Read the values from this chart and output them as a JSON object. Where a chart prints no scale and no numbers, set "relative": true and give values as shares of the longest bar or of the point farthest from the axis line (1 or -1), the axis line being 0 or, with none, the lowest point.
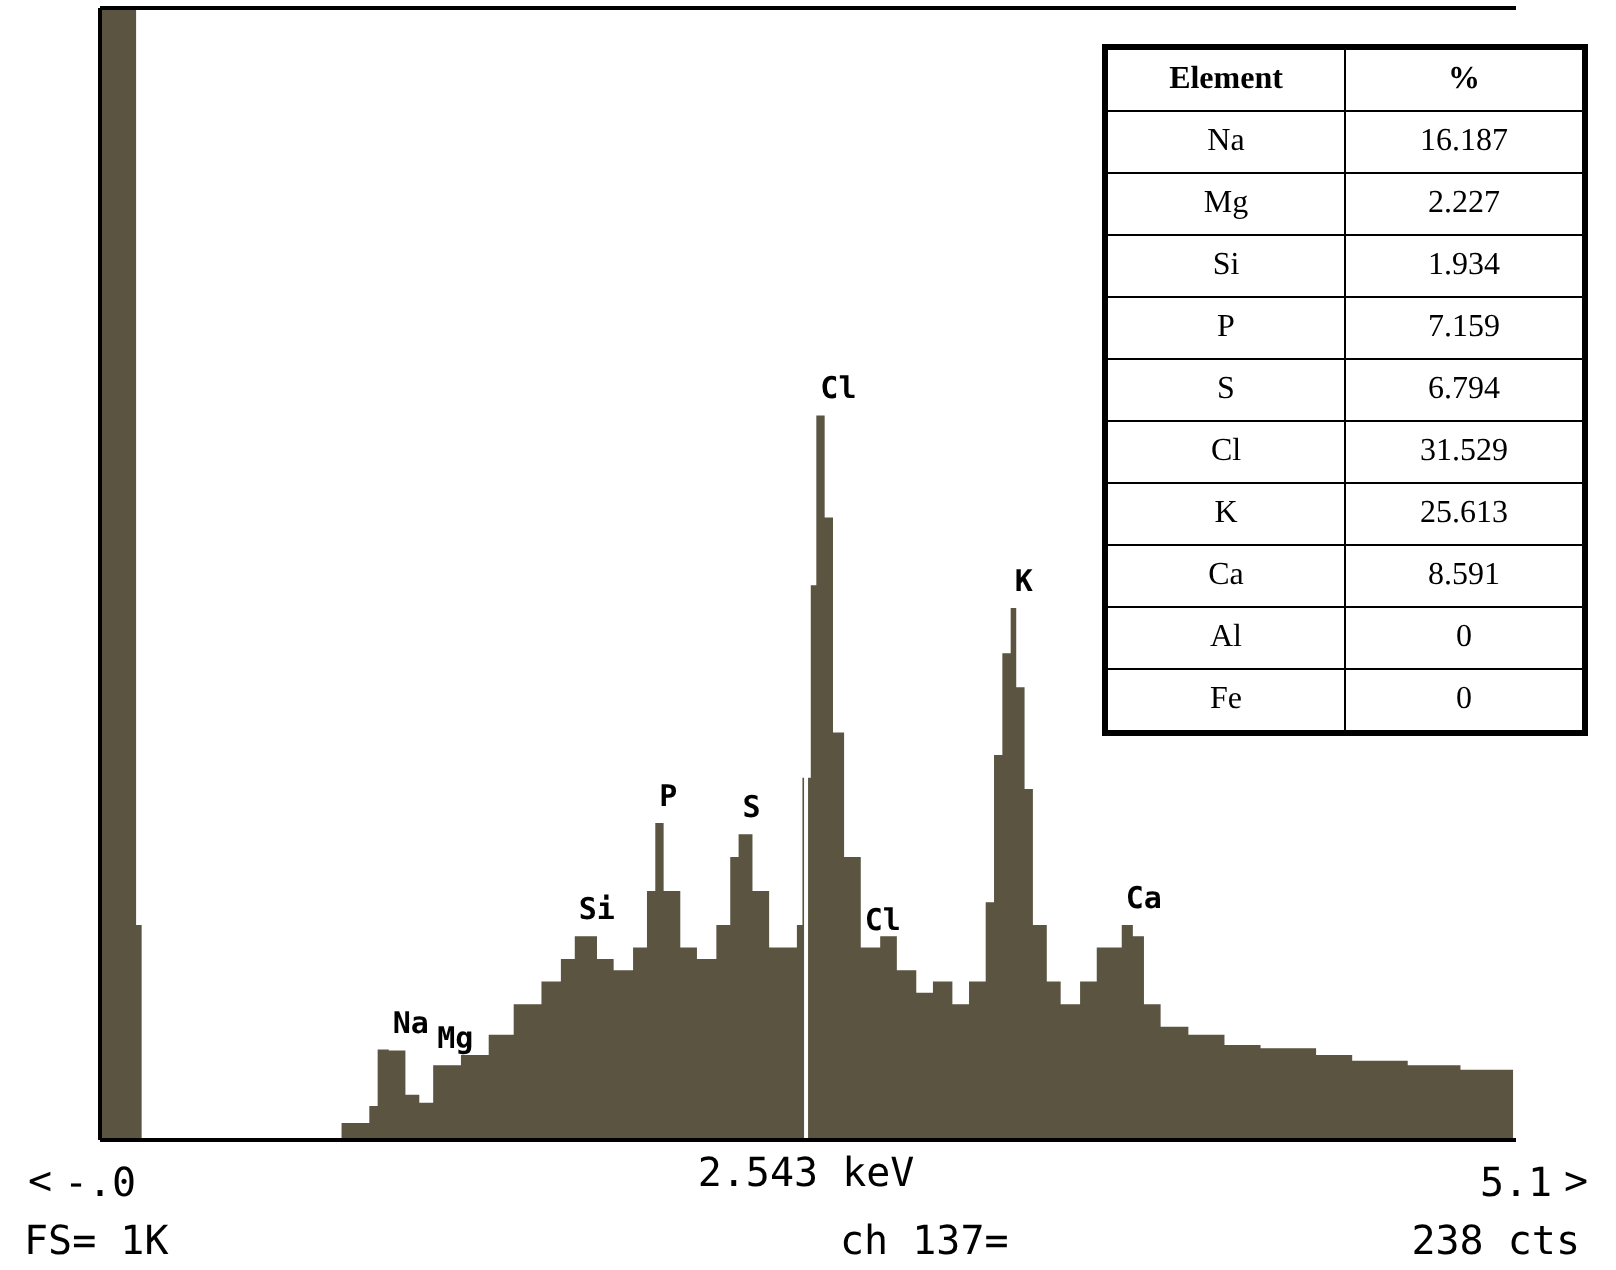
{
  "chart_data": {
    "type": "area",
    "relative": true,
    "color": "#5a5440",
    "x": [
      0,
      0.13,
      0.13,
      0.15,
      0.84,
      0.87,
      0.97,
      1.0,
      1.04,
      1.1,
      1.15,
      1.2,
      1.3,
      1.4,
      1.49,
      1.59,
      1.66,
      1.71,
      1.79,
      1.85,
      1.92,
      1.97,
      2.0,
      2.03,
      2.09,
      2.15,
      2.22,
      2.27,
      2.3,
      2.35,
      2.41,
      2.48,
      2.51,
      2.53,
      2.56,
      2.58,
      2.61,
      2.64,
      2.68,
      2.74,
      2.81,
      2.87,
      2.94,
      3.0,
      3.07,
      3.13,
      3.19,
      3.22,
      3.25,
      3.28,
      3.3,
      3.33,
      3.36,
      3.41,
      3.46,
      3.53,
      3.59,
      3.68,
      3.72,
      3.76,
      3.82,
      3.92,
      4.05,
      4.18,
      4.38,
      4.51,
      4.71,
      4.9,
      5.09
    ],
    "values": [
      1,
      1,
      0.19,
      0,
      0,
      0.015,
      0.03,
      0.08,
      0.079,
      0.04,
      0.033,
      0.066,
      0.075,
      0.093,
      0.12,
      0.14,
      0.16,
      0.18,
      0.16,
      0.15,
      0.17,
      0.22,
      0.28,
      0.22,
      0.17,
      0.16,
      0.19,
      0.25,
      0.27,
      0.22,
      0.17,
      0.17,
      0.19,
      0.32,
      0.49,
      0.64,
      0.55,
      0.36,
      0.25,
      0.17,
      0.18,
      0.15,
      0.13,
      0.14,
      0.12,
      0.14,
      0.21,
      0.34,
      0.43,
      0.47,
      0.4,
      0.31,
      0.19,
      0.14,
      0.12,
      0.14,
      0.17,
      0.19,
      0.18,
      0.12,
      0.1,
      0.093,
      0.084,
      0.081,
      0.075,
      0.07,
      0.066,
      0.062,
      0.057
    ],
    "xlim": [
      0,
      5.1
    ],
    "xticks": [
      {
        "value": 0,
        "label": "-.0"
      },
      5.1
    ],
    "ref_lines": [
      {
        "axis": "x",
        "value": 2.543,
        "label": "2.543 keV",
        "color": "#ffffff"
      }
    ],
    "annotations": [
      {
        "text": "Na",
        "x": 1.04,
        "y": 0.079
      },
      {
        "text": "Mg",
        "x": 1.2,
        "y": 0.066
      },
      {
        "text": "Si",
        "x": 1.71,
        "y": 0.18
      },
      {
        "text": "P",
        "x": 2.0,
        "y": 0.28
      },
      {
        "text": "S",
        "x": 2.3,
        "y": 0.27
      },
      {
        "text": "Cl",
        "x": 2.58,
        "y": 0.64
      },
      {
        "text": "Cl",
        "x": 2.74,
        "y": 0.17
      },
      {
        "text": "K",
        "x": 3.28,
        "y": 0.47
      },
      {
        "text": "Ca",
        "x": 3.68,
        "y": 0.19
      },
      "FS= 1K",
      "ch 137=",
      "238 cts",
      "<",
      ">",
      "Element",
      "%",
      "Na",
      "16.187",
      "Mg",
      "2.227",
      "Si",
      "1.934",
      "P",
      "7.159",
      "S",
      "6.794",
      "Cl",
      "31.529",
      "K",
      "25.613",
      "Ca",
      "8.591",
      "Al",
      "0",
      "Fe",
      "0"
    ]
  }
}
